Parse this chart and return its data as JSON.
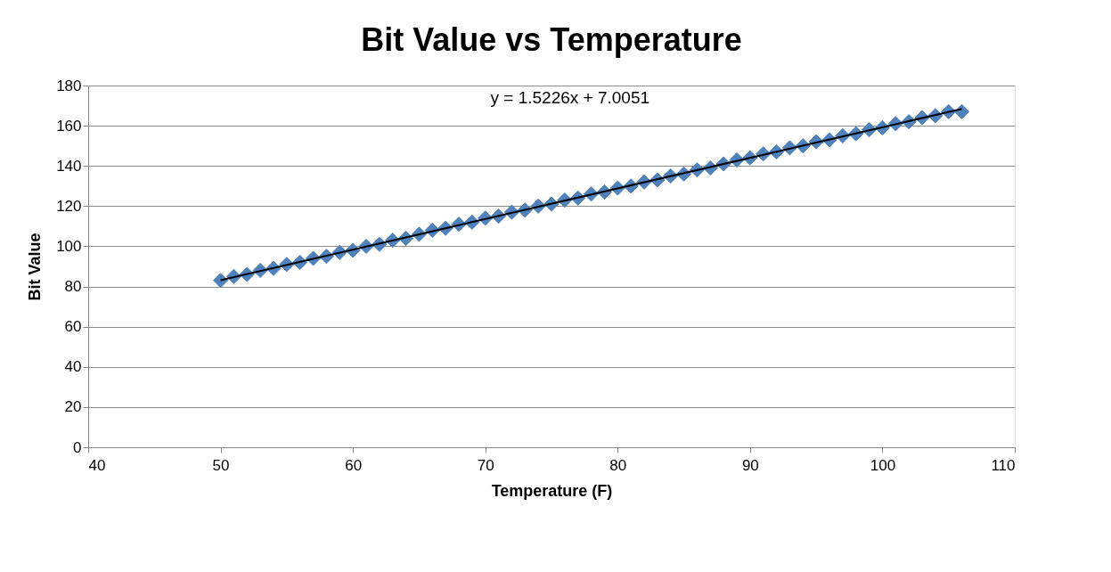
{
  "chart_data": {
    "type": "scatter",
    "title": "Bit Value vs Temperature",
    "xlabel": "Temperature (F)",
    "ylabel": "Bit Value",
    "xlim": [
      40,
      110
    ],
    "xticks": [
      40,
      50,
      60,
      70,
      80,
      90,
      100,
      110
    ],
    "ylim": [
      0,
      180
    ],
    "yticks": [
      0,
      20,
      40,
      60,
      80,
      100,
      120,
      140,
      160,
      180
    ],
    "grid": "y",
    "annotations": [
      "y = 1.5226x + 7.0051"
    ],
    "series": [
      {
        "color": "#4f81bd",
        "marker": "diamond",
        "x": [
          50,
          51,
          52,
          53,
          54,
          55,
          56,
          57,
          58,
          59,
          60,
          61,
          62,
          63,
          64,
          65,
          66,
          67,
          68,
          69,
          70,
          71,
          72,
          73,
          74,
          75,
          76,
          77,
          78,
          79,
          80,
          81,
          82,
          83,
          84,
          85,
          86,
          87,
          88,
          89,
          90,
          91,
          92,
          93,
          94,
          95,
          96,
          97,
          98,
          99,
          100,
          101,
          102,
          103,
          104,
          105,
          106
        ],
        "values": [
          83,
          85,
          86,
          88,
          89,
          91,
          92,
          94,
          95,
          97,
          98,
          100,
          101,
          103,
          104,
          106,
          108,
          109,
          111,
          112,
          114,
          115,
          117,
          118,
          120,
          121,
          123,
          124,
          126,
          127,
          129,
          130,
          132,
          133,
          135,
          136,
          138,
          139,
          141,
          143,
          144,
          146,
          147,
          149,
          150,
          152,
          153,
          155,
          156,
          158,
          159,
          161,
          162,
          164,
          165,
          167,
          167
        ]
      },
      {
        "type": "line",
        "color": "#000000",
        "line_style": "solid",
        "marker": "none",
        "x": [
          50,
          106
        ],
        "values": [
          83.1,
          168.4
        ]
      }
    ]
  }
}
